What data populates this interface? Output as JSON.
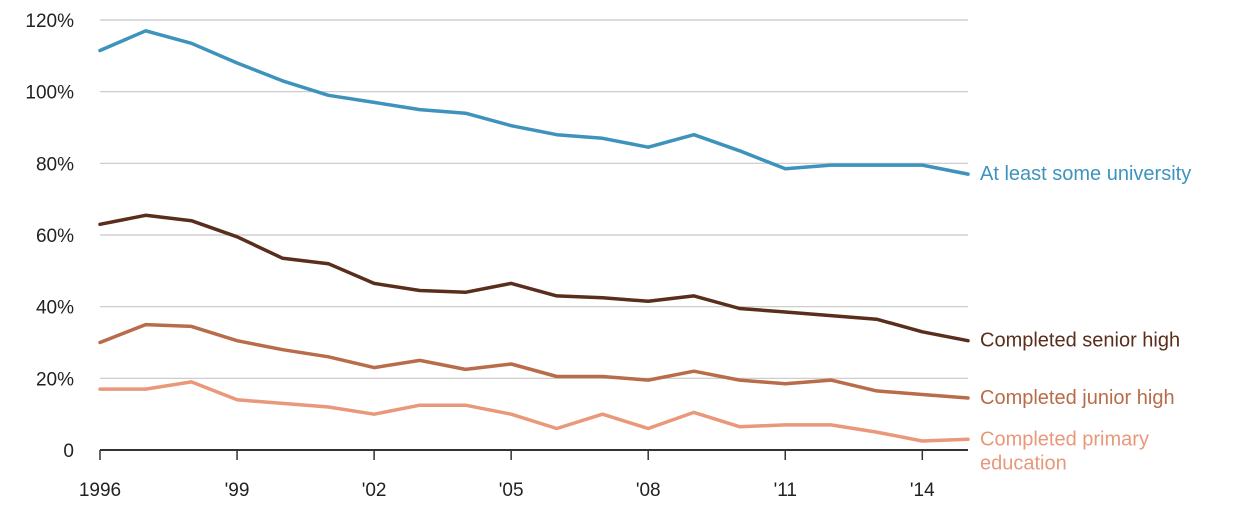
{
  "chart_data": {
    "type": "line",
    "title": "",
    "xlabel": "",
    "ylabel": "",
    "x": [
      1996,
      1997,
      1998,
      1999,
      2000,
      2001,
      2002,
      2003,
      2004,
      2005,
      2006,
      2007,
      2008,
      2009,
      2010,
      2011,
      2012,
      2013,
      2014,
      2015
    ],
    "xlim": [
      1996,
      2015
    ],
    "ylim": [
      0,
      120
    ],
    "x_ticks": [
      1996,
      1999,
      2002,
      2005,
      2008,
      2011,
      2014
    ],
    "x_tick_labels": [
      "1996",
      "'99",
      "'02",
      "'05",
      "'08",
      "'11",
      "'14"
    ],
    "y_ticks": [
      0,
      20,
      40,
      60,
      80,
      100,
      120
    ],
    "y_tick_labels": [
      "0",
      "20%",
      "40%",
      "60%",
      "80%",
      "100%",
      "120%"
    ],
    "grid": "horizontal",
    "series": [
      {
        "name": "At least some university",
        "color": "#3e93bd",
        "values": [
          111.5,
          117,
          113.5,
          108,
          103,
          99,
          97,
          95,
          94,
          90.5,
          88,
          87,
          84.5,
          88,
          83.5,
          78.5,
          79.5,
          79.5,
          79.5,
          77
        ]
      },
      {
        "name": "Completed senior high",
        "color": "#5a2e1c",
        "values": [
          63,
          65.5,
          64,
          59.5,
          53.5,
          52,
          46.5,
          44.5,
          44,
          46.5,
          43,
          42.5,
          41.5,
          43,
          39.5,
          38.5,
          37.5,
          36.5,
          33,
          30.5
        ]
      },
      {
        "name": "Completed junior high",
        "color": "#b86c4a",
        "values": [
          30,
          35,
          34.5,
          30.5,
          28,
          26,
          23,
          25,
          22.5,
          24,
          20.5,
          20.5,
          19.5,
          22,
          19.5,
          18.5,
          19.5,
          16.5,
          15.5,
          14.5
        ]
      },
      {
        "name": "Completed primary education",
        "label_lines": [
          "Completed primary",
          "education"
        ],
        "color": "#e9987a",
        "values": [
          17,
          17,
          19,
          14,
          13,
          12,
          10,
          12.5,
          12.5,
          10,
          6,
          10,
          6,
          10.5,
          6.5,
          7,
          7,
          5,
          2.5,
          3
        ]
      }
    ]
  }
}
